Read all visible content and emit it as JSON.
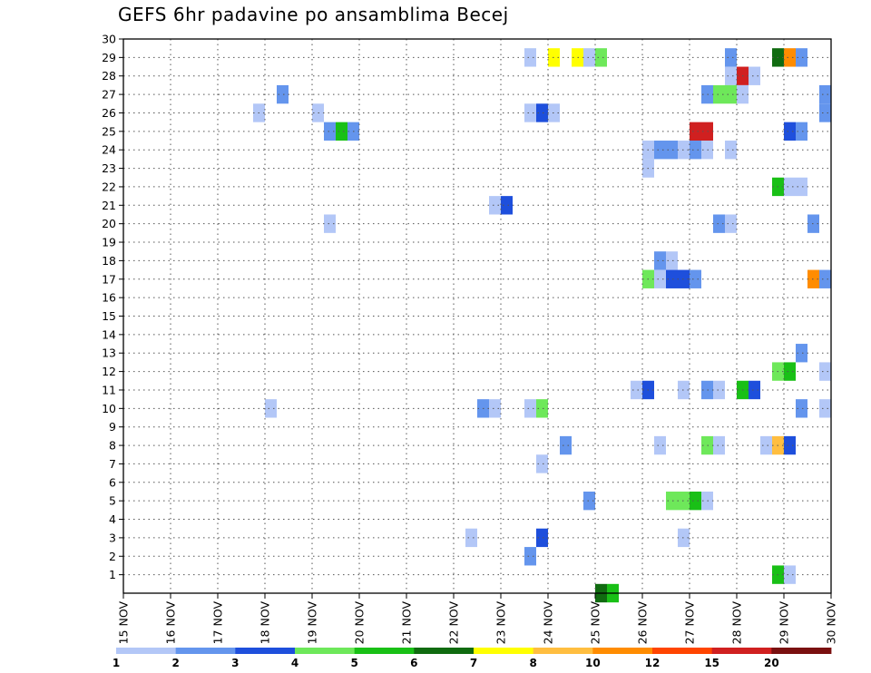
{
  "chart_data": {
    "type": "heatmap",
    "title": "GEFS 6hr padavine po ansamblima Becej",
    "x_tick_labels": [
      "15 NOV",
      "16 NOV",
      "17 NOV",
      "18 NOV",
      "19 NOV",
      "20 NOV",
      "21 NOV",
      "22 NOV",
      "23 NOV",
      "24 NOV",
      "25 NOV",
      "26 NOV",
      "27 NOV",
      "28 NOV",
      "29 NOV",
      "30 NOV"
    ],
    "x_range_days": [
      15,
      30
    ],
    "x_step_days": 0.25,
    "y_range": [
      0,
      30
    ],
    "y_ticks": [
      1,
      2,
      3,
      4,
      5,
      6,
      7,
      8,
      9,
      10,
      11,
      12,
      13,
      14,
      15,
      16,
      17,
      18,
      19,
      20,
      21,
      22,
      23,
      24,
      25,
      26,
      27,
      28,
      29,
      30
    ],
    "grid": true,
    "colorbar": {
      "levels": [
        "1",
        "2",
        "3",
        "4",
        "5",
        "6",
        "7",
        "8",
        "10",
        "12",
        "15",
        "20"
      ],
      "colors": [
        "#b3c7f7",
        "#6495ed",
        "#1e4fdc",
        "#6ee85a",
        "#19c016",
        "#106b10",
        "#ffff00",
        "#ffbe40",
        "#ff8c00",
        "#ff4500",
        "#d02020",
        "#7a1010"
      ]
    },
    "cells": [
      {
        "member": 29,
        "t": 23.5,
        "c": 0
      },
      {
        "member": 29,
        "t": 24.0,
        "c": 6
      },
      {
        "member": 29,
        "t": 24.5,
        "c": 6
      },
      {
        "member": 29,
        "t": 24.75,
        "c": 0
      },
      {
        "member": 29,
        "t": 25.0,
        "c": 3
      },
      {
        "member": 29,
        "t": 27.75,
        "c": 1
      },
      {
        "member": 29,
        "t": 28.75,
        "c": 5
      },
      {
        "member": 29,
        "t": 29.0,
        "c": 8
      },
      {
        "member": 29,
        "t": 29.25,
        "c": 1
      },
      {
        "member": 28,
        "t": 27.75,
        "c": 0
      },
      {
        "member": 28,
        "t": 28.0,
        "c": 10
      },
      {
        "member": 28,
        "t": 28.25,
        "c": 0
      },
      {
        "member": 27,
        "t": 18.25,
        "c": 1
      },
      {
        "member": 27,
        "t": 27.25,
        "c": 1
      },
      {
        "member": 27,
        "t": 27.5,
        "c": 3
      },
      {
        "member": 27,
        "t": 27.75,
        "c": 3
      },
      {
        "member": 27,
        "t": 28.0,
        "c": 0
      },
      {
        "member": 27,
        "t": 29.75,
        "c": 1
      },
      {
        "member": 26,
        "t": 17.75,
        "c": 0
      },
      {
        "member": 26,
        "t": 19.0,
        "c": 0
      },
      {
        "member": 26,
        "t": 23.5,
        "c": 0
      },
      {
        "member": 26,
        "t": 23.75,
        "c": 2
      },
      {
        "member": 26,
        "t": 24.0,
        "c": 0
      },
      {
        "member": 26,
        "t": 29.75,
        "c": 1
      },
      {
        "member": 25,
        "t": 19.25,
        "c": 1
      },
      {
        "member": 25,
        "t": 19.5,
        "c": 4
      },
      {
        "member": 25,
        "t": 19.75,
        "c": 1
      },
      {
        "member": 25,
        "t": 27.0,
        "c": 10
      },
      {
        "member": 25,
        "t": 27.25,
        "c": 10
      },
      {
        "member": 25,
        "t": 29.0,
        "c": 2
      },
      {
        "member": 25,
        "t": 29.25,
        "c": 1
      },
      {
        "member": 24,
        "t": 26.0,
        "c": 0
      },
      {
        "member": 24,
        "t": 26.25,
        "c": 1
      },
      {
        "member": 24,
        "t": 26.5,
        "c": 1
      },
      {
        "member": 24,
        "t": 26.75,
        "c": 0
      },
      {
        "member": 24,
        "t": 27.0,
        "c": 1
      },
      {
        "member": 24,
        "t": 27.25,
        "c": 0
      },
      {
        "member": 24,
        "t": 27.75,
        "c": 0
      },
      {
        "member": 23,
        "t": 26.0,
        "c": 0
      },
      {
        "member": 22,
        "t": 28.75,
        "c": 4
      },
      {
        "member": 22,
        "t": 29.0,
        "c": 0
      },
      {
        "member": 22,
        "t": 29.25,
        "c": 0
      },
      {
        "member": 21,
        "t": 22.75,
        "c": 0
      },
      {
        "member": 21,
        "t": 23.0,
        "c": 2
      },
      {
        "member": 20,
        "t": 19.25,
        "c": 0
      },
      {
        "member": 20,
        "t": 27.5,
        "c": 1
      },
      {
        "member": 20,
        "t": 27.75,
        "c": 0
      },
      {
        "member": 20,
        "t": 29.5,
        "c": 1
      },
      {
        "member": 18,
        "t": 26.25,
        "c": 1
      },
      {
        "member": 18,
        "t": 26.5,
        "c": 0
      },
      {
        "member": 17,
        "t": 26.0,
        "c": 3
      },
      {
        "member": 17,
        "t": 26.25,
        "c": 0
      },
      {
        "member": 17,
        "t": 26.5,
        "c": 2
      },
      {
        "member": 17,
        "t": 26.75,
        "c": 2
      },
      {
        "member": 17,
        "t": 27.0,
        "c": 1
      },
      {
        "member": 17,
        "t": 29.5,
        "c": 8
      },
      {
        "member": 17,
        "t": 29.75,
        "c": 1
      },
      {
        "member": 13,
        "t": 29.25,
        "c": 1
      },
      {
        "member": 12,
        "t": 28.75,
        "c": 3
      },
      {
        "member": 12,
        "t": 29.0,
        "c": 4
      },
      {
        "member": 12,
        "t": 29.75,
        "c": 0
      },
      {
        "member": 11,
        "t": 25.75,
        "c": 0
      },
      {
        "member": 11,
        "t": 26.0,
        "c": 2
      },
      {
        "member": 11,
        "t": 26.75,
        "c": 0
      },
      {
        "member": 11,
        "t": 27.25,
        "c": 1
      },
      {
        "member": 11,
        "t": 27.5,
        "c": 0
      },
      {
        "member": 11,
        "t": 28.0,
        "c": 4
      },
      {
        "member": 11,
        "t": 28.25,
        "c": 2
      },
      {
        "member": 10,
        "t": 18.0,
        "c": 0
      },
      {
        "member": 10,
        "t": 22.5,
        "c": 1
      },
      {
        "member": 10,
        "t": 22.75,
        "c": 0
      },
      {
        "member": 10,
        "t": 23.5,
        "c": 0
      },
      {
        "member": 10,
        "t": 23.75,
        "c": 3
      },
      {
        "member": 10,
        "t": 29.25,
        "c": 1
      },
      {
        "member": 10,
        "t": 29.75,
        "c": 0
      },
      {
        "member": 8,
        "t": 24.25,
        "c": 1
      },
      {
        "member": 8,
        "t": 26.25,
        "c": 0
      },
      {
        "member": 8,
        "t": 27.25,
        "c": 3
      },
      {
        "member": 8,
        "t": 27.5,
        "c": 0
      },
      {
        "member": 8,
        "t": 28.5,
        "c": 0
      },
      {
        "member": 8,
        "t": 28.75,
        "c": 7
      },
      {
        "member": 8,
        "t": 29.0,
        "c": 2
      },
      {
        "member": 7,
        "t": 23.75,
        "c": 0
      },
      {
        "member": 5,
        "t": 24.75,
        "c": 1
      },
      {
        "member": 5,
        "t": 26.5,
        "c": 3
      },
      {
        "member": 5,
        "t": 26.75,
        "c": 3
      },
      {
        "member": 5,
        "t": 27.0,
        "c": 4
      },
      {
        "member": 5,
        "t": 27.25,
        "c": 0
      },
      {
        "member": 3,
        "t": 22.25,
        "c": 0
      },
      {
        "member": 3,
        "t": 23.75,
        "c": 2
      },
      {
        "member": 3,
        "t": 26.75,
        "c": 0
      },
      {
        "member": 2,
        "t": 23.5,
        "c": 1
      },
      {
        "member": 1,
        "t": 28.75,
        "c": 4
      },
      {
        "member": 1,
        "t": 29.0,
        "c": 0
      },
      {
        "member": 0,
        "t": 25.0,
        "c": 5
      },
      {
        "member": 0,
        "t": 25.25,
        "c": 4
      }
    ]
  }
}
